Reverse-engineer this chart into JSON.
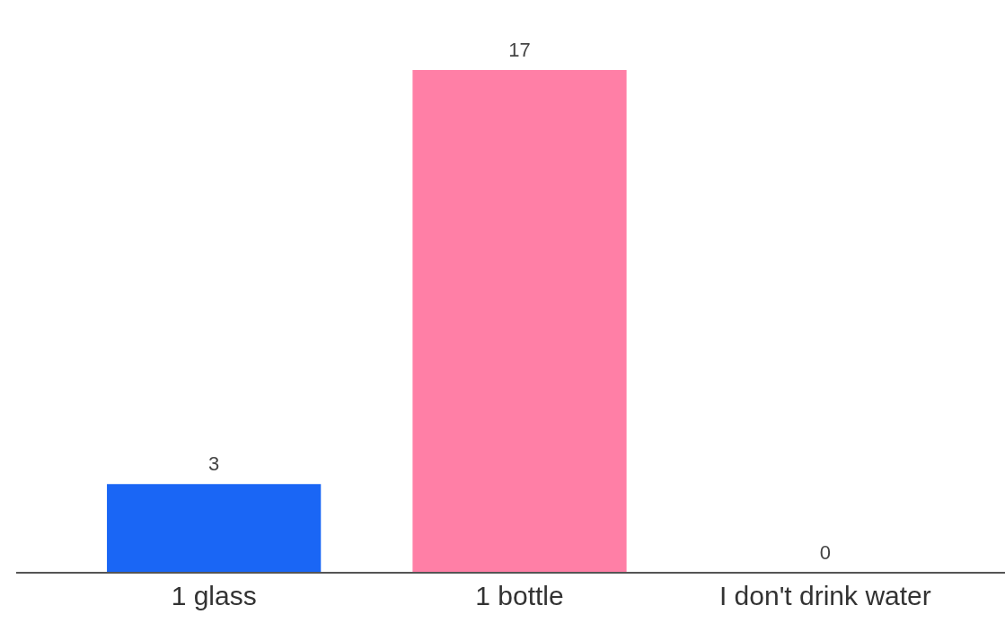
{
  "chart_data": {
    "type": "bar",
    "categories": [
      "1 glass",
      "1 bottle",
      "I don't drink water"
    ],
    "values": [
      3,
      17,
      0
    ],
    "colors": [
      "#1a66f5",
      "#ff7fa6",
      "#f5b400"
    ],
    "data_labels": true,
    "grid": false,
    "legend": false
  }
}
